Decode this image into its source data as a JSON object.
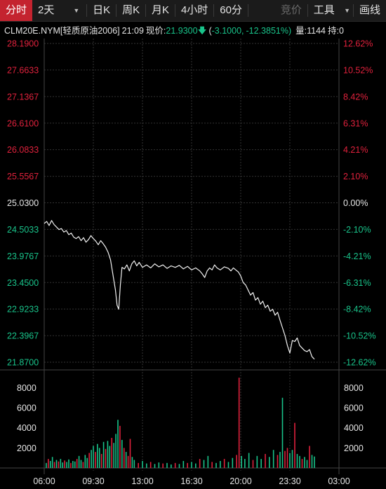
{
  "toolbar": {
    "tabs": [
      {
        "label": "分时",
        "active": true
      },
      {
        "label": "2天",
        "dropdown": true
      },
      {
        "label": "日K"
      },
      {
        "label": "周K"
      },
      {
        "label": "月K"
      },
      {
        "label": "4小时"
      },
      {
        "label": "60分"
      }
    ],
    "compare_label": "竞价",
    "tools_label": "工具",
    "draw_label": "画线"
  },
  "info": {
    "symbol": "CLM20E.NYM[轻质原油2006]",
    "time": "21:09",
    "price_label": "现价:",
    "price": "21.9300",
    "change": "-3.1000,",
    "change_pct": "-12.3851%)",
    "change_open": "(",
    "volume": "量:1144",
    "open_interest": "持:0"
  },
  "colors": {
    "up": "#e0213c",
    "down": "#19c38a",
    "neutral": "#e6e6e6",
    "grid": "#3a3a3a"
  },
  "chart_data": {
    "type": "line",
    "price_axis_left": [
      "28.1900",
      "27.6633",
      "27.1367",
      "26.6100",
      "26.0833",
      "25.5567",
      "25.0300",
      "24.5033",
      "23.9767",
      "23.4500",
      "22.9233",
      "22.3967",
      "21.8700"
    ],
    "pct_axis_right": [
      "12.62%",
      "10.52%",
      "8.42%",
      "6.31%",
      "4.21%",
      "2.10%",
      "0.00%",
      "-2.10%",
      "-4.21%",
      "-6.31%",
      "-8.42%",
      "-10.52%",
      "-12.62%"
    ],
    "ylim": [
      21.87,
      28.19
    ],
    "prev_close": 25.03,
    "time_labels": [
      "06:00",
      "09:30",
      "13:00",
      "16:30",
      "20:00",
      "23:30",
      "03:00"
    ],
    "volume_axis": [
      "8000",
      "6000",
      "4000",
      "2000"
    ],
    "volume_ylim": [
      0,
      9500
    ],
    "price_series": [
      [
        0.0,
        24.62
      ],
      [
        0.6,
        24.66
      ],
      [
        1.2,
        24.58
      ],
      [
        1.8,
        24.68
      ],
      [
        2.4,
        24.6
      ],
      [
        3.0,
        24.55
      ],
      [
        3.6,
        24.5
      ],
      [
        4.2,
        24.52
      ],
      [
        4.8,
        24.45
      ],
      [
        5.4,
        24.48
      ],
      [
        6.0,
        24.4
      ],
      [
        6.6,
        24.43
      ],
      [
        7.2,
        24.35
      ],
      [
        7.8,
        24.32
      ],
      [
        8.4,
        24.36
      ],
      [
        9.0,
        24.28
      ],
      [
        9.6,
        24.34
      ],
      [
        10.2,
        24.25
      ],
      [
        10.8,
        24.3
      ],
      [
        11.4,
        24.38
      ],
      [
        12.0,
        24.32
      ],
      [
        12.6,
        24.27
      ],
      [
        13.2,
        24.2
      ],
      [
        13.8,
        24.28
      ],
      [
        14.4,
        24.22
      ],
      [
        15.0,
        24.15
      ],
      [
        15.6,
        24.05
      ],
      [
        16.2,
        23.9
      ],
      [
        16.8,
        23.6
      ],
      [
        17.4,
        23.3
      ],
      [
        17.8,
        23.0
      ],
      [
        18.2,
        22.92
      ],
      [
        18.6,
        23.4
      ],
      [
        19.0,
        23.75
      ],
      [
        19.6,
        23.72
      ],
      [
        20.2,
        23.8
      ],
      [
        20.8,
        23.68
      ],
      [
        21.4,
        23.82
      ],
      [
        22.0,
        23.88
      ],
      [
        22.6,
        23.78
      ],
      [
        23.2,
        23.85
      ],
      [
        24.0,
        23.75
      ],
      [
        25.0,
        23.8
      ],
      [
        26.0,
        23.74
      ],
      [
        27.0,
        23.82
      ],
      [
        28.0,
        23.76
      ],
      [
        29.0,
        23.8
      ],
      [
        30.0,
        23.73
      ],
      [
        31.0,
        23.78
      ],
      [
        32.0,
        23.75
      ],
      [
        33.0,
        23.79
      ],
      [
        34.0,
        23.72
      ],
      [
        35.0,
        23.77
      ],
      [
        36.0,
        23.7
      ],
      [
        37.0,
        23.74
      ],
      [
        38.0,
        23.68
      ],
      [
        38.6,
        23.62
      ],
      [
        39.2,
        23.55
      ],
      [
        39.8,
        23.68
      ],
      [
        40.4,
        23.74
      ],
      [
        41.0,
        23.7
      ],
      [
        41.6,
        23.8
      ],
      [
        42.2,
        23.74
      ],
      [
        43.0,
        23.7
      ],
      [
        44.0,
        23.76
      ],
      [
        45.0,
        23.73
      ],
      [
        45.6,
        23.68
      ],
      [
        46.2,
        23.74
      ],
      [
        46.8,
        23.7
      ],
      [
        47.4,
        23.66
      ],
      [
        48.0,
        23.58
      ],
      [
        48.6,
        23.45
      ],
      [
        49.2,
        23.4
      ],
      [
        49.8,
        23.3
      ],
      [
        50.4,
        23.2
      ],
      [
        51.0,
        23.25
      ],
      [
        51.6,
        23.1
      ],
      [
        52.2,
        23.15
      ],
      [
        52.8,
        23.02
      ],
      [
        53.4,
        23.08
      ],
      [
        54.0,
        22.95
      ],
      [
        54.6,
        23.0
      ],
      [
        55.2,
        22.88
      ],
      [
        55.8,
        22.92
      ],
      [
        56.4,
        22.8
      ],
      [
        57.0,
        22.86
      ],
      [
        57.6,
        22.7
      ],
      [
        58.2,
        22.55
      ],
      [
        58.8,
        22.4
      ],
      [
        59.4,
        22.2
      ],
      [
        60.0,
        22.05
      ],
      [
        60.6,
        22.3
      ],
      [
        61.2,
        22.28
      ],
      [
        61.8,
        22.35
      ],
      [
        62.4,
        22.2
      ],
      [
        63.0,
        22.15
      ],
      [
        63.6,
        22.1
      ],
      [
        64.2,
        22.08
      ],
      [
        64.8,
        22.12
      ],
      [
        65.4,
        21.98
      ],
      [
        66.0,
        21.93
      ]
    ],
    "volume_series": [
      [
        0.5,
        500,
        "down"
      ],
      [
        1.0,
        900,
        "up"
      ],
      [
        1.5,
        700,
        "down"
      ],
      [
        2.0,
        1100,
        "down"
      ],
      [
        2.5,
        600,
        "up"
      ],
      [
        3.0,
        800,
        "down"
      ],
      [
        3.5,
        650,
        "up"
      ],
      [
        4.0,
        900,
        "down"
      ],
      [
        4.5,
        550,
        "down"
      ],
      [
        5.0,
        750,
        "up"
      ],
      [
        5.5,
        600,
        "down"
      ],
      [
        6.0,
        850,
        "down"
      ],
      [
        6.5,
        500,
        "up"
      ],
      [
        7.0,
        700,
        "down"
      ],
      [
        7.5,
        650,
        "down"
      ],
      [
        8.0,
        900,
        "up"
      ],
      [
        8.5,
        1200,
        "down"
      ],
      [
        9.0,
        800,
        "down"
      ],
      [
        9.5,
        600,
        "up"
      ],
      [
        10.0,
        1300,
        "down"
      ],
      [
        10.5,
        1000,
        "down"
      ],
      [
        11.0,
        1500,
        "up"
      ],
      [
        11.5,
        1800,
        "down"
      ],
      [
        12.0,
        2200,
        "down"
      ],
      [
        12.5,
        1600,
        "up"
      ],
      [
        13.0,
        2400,
        "down"
      ],
      [
        13.5,
        2000,
        "down"
      ],
      [
        14.0,
        1400,
        "up"
      ],
      [
        14.5,
        2600,
        "down"
      ],
      [
        15.0,
        1900,
        "up"
      ],
      [
        15.5,
        2700,
        "down"
      ],
      [
        16.0,
        2200,
        "down"
      ],
      [
        16.5,
        3000,
        "up"
      ],
      [
        17.0,
        2500,
        "down"
      ],
      [
        17.5,
        3400,
        "down"
      ],
      [
        18.0,
        4800,
        "down"
      ],
      [
        18.5,
        4200,
        "up"
      ],
      [
        19.0,
        2800,
        "down"
      ],
      [
        19.5,
        2000,
        "up"
      ],
      [
        20.0,
        1600,
        "down"
      ],
      [
        20.5,
        1200,
        "up"
      ],
      [
        21.0,
        2900,
        "up"
      ],
      [
        21.5,
        1100,
        "down"
      ],
      [
        22.0,
        800,
        "down"
      ],
      [
        23.0,
        500,
        "up"
      ],
      [
        24.0,
        700,
        "down"
      ],
      [
        25.0,
        450,
        "down"
      ],
      [
        26.0,
        600,
        "up"
      ],
      [
        27.0,
        400,
        "down"
      ],
      [
        28.0,
        550,
        "down"
      ],
      [
        29.0,
        450,
        "up"
      ],
      [
        30.0,
        500,
        "down"
      ],
      [
        31.0,
        350,
        "down"
      ],
      [
        32.0,
        500,
        "up"
      ],
      [
        33.0,
        400,
        "down"
      ],
      [
        34.0,
        700,
        "down"
      ],
      [
        35.0,
        500,
        "up"
      ],
      [
        36.0,
        600,
        "down"
      ],
      [
        37.0,
        450,
        "down"
      ],
      [
        38.0,
        900,
        "up"
      ],
      [
        39.0,
        800,
        "down"
      ],
      [
        40.0,
        1200,
        "down"
      ],
      [
        41.0,
        600,
        "up"
      ],
      [
        42.0,
        500,
        "down"
      ],
      [
        43.0,
        700,
        "down"
      ],
      [
        44.0,
        900,
        "up"
      ],
      [
        45.0,
        600,
        "down"
      ],
      [
        46.0,
        1000,
        "down"
      ],
      [
        47.0,
        1300,
        "up"
      ],
      [
        47.6,
        9000,
        "up"
      ],
      [
        48.2,
        1200,
        "down"
      ],
      [
        49.0,
        900,
        "down"
      ],
      [
        50.0,
        1500,
        "down"
      ],
      [
        51.0,
        800,
        "up"
      ],
      [
        52.0,
        1200,
        "down"
      ],
      [
        53.0,
        900,
        "down"
      ],
      [
        54.0,
        1400,
        "up"
      ],
      [
        55.0,
        1100,
        "down"
      ],
      [
        56.0,
        1800,
        "down"
      ],
      [
        57.0,
        1300,
        "up"
      ],
      [
        57.6,
        1600,
        "down"
      ],
      [
        58.2,
        7000,
        "down"
      ],
      [
        58.8,
        1700,
        "up"
      ],
      [
        59.4,
        2000,
        "up"
      ],
      [
        60.0,
        1500,
        "down"
      ],
      [
        60.6,
        1800,
        "down"
      ],
      [
        61.2,
        4500,
        "up"
      ],
      [
        61.8,
        1400,
        "down"
      ],
      [
        62.4,
        1200,
        "down"
      ],
      [
        63.0,
        900,
        "up"
      ],
      [
        63.6,
        1100,
        "down"
      ],
      [
        64.2,
        800,
        "down"
      ],
      [
        64.8,
        2200,
        "up"
      ],
      [
        65.4,
        1300,
        "down"
      ],
      [
        66.0,
        1144,
        "down"
      ]
    ]
  }
}
